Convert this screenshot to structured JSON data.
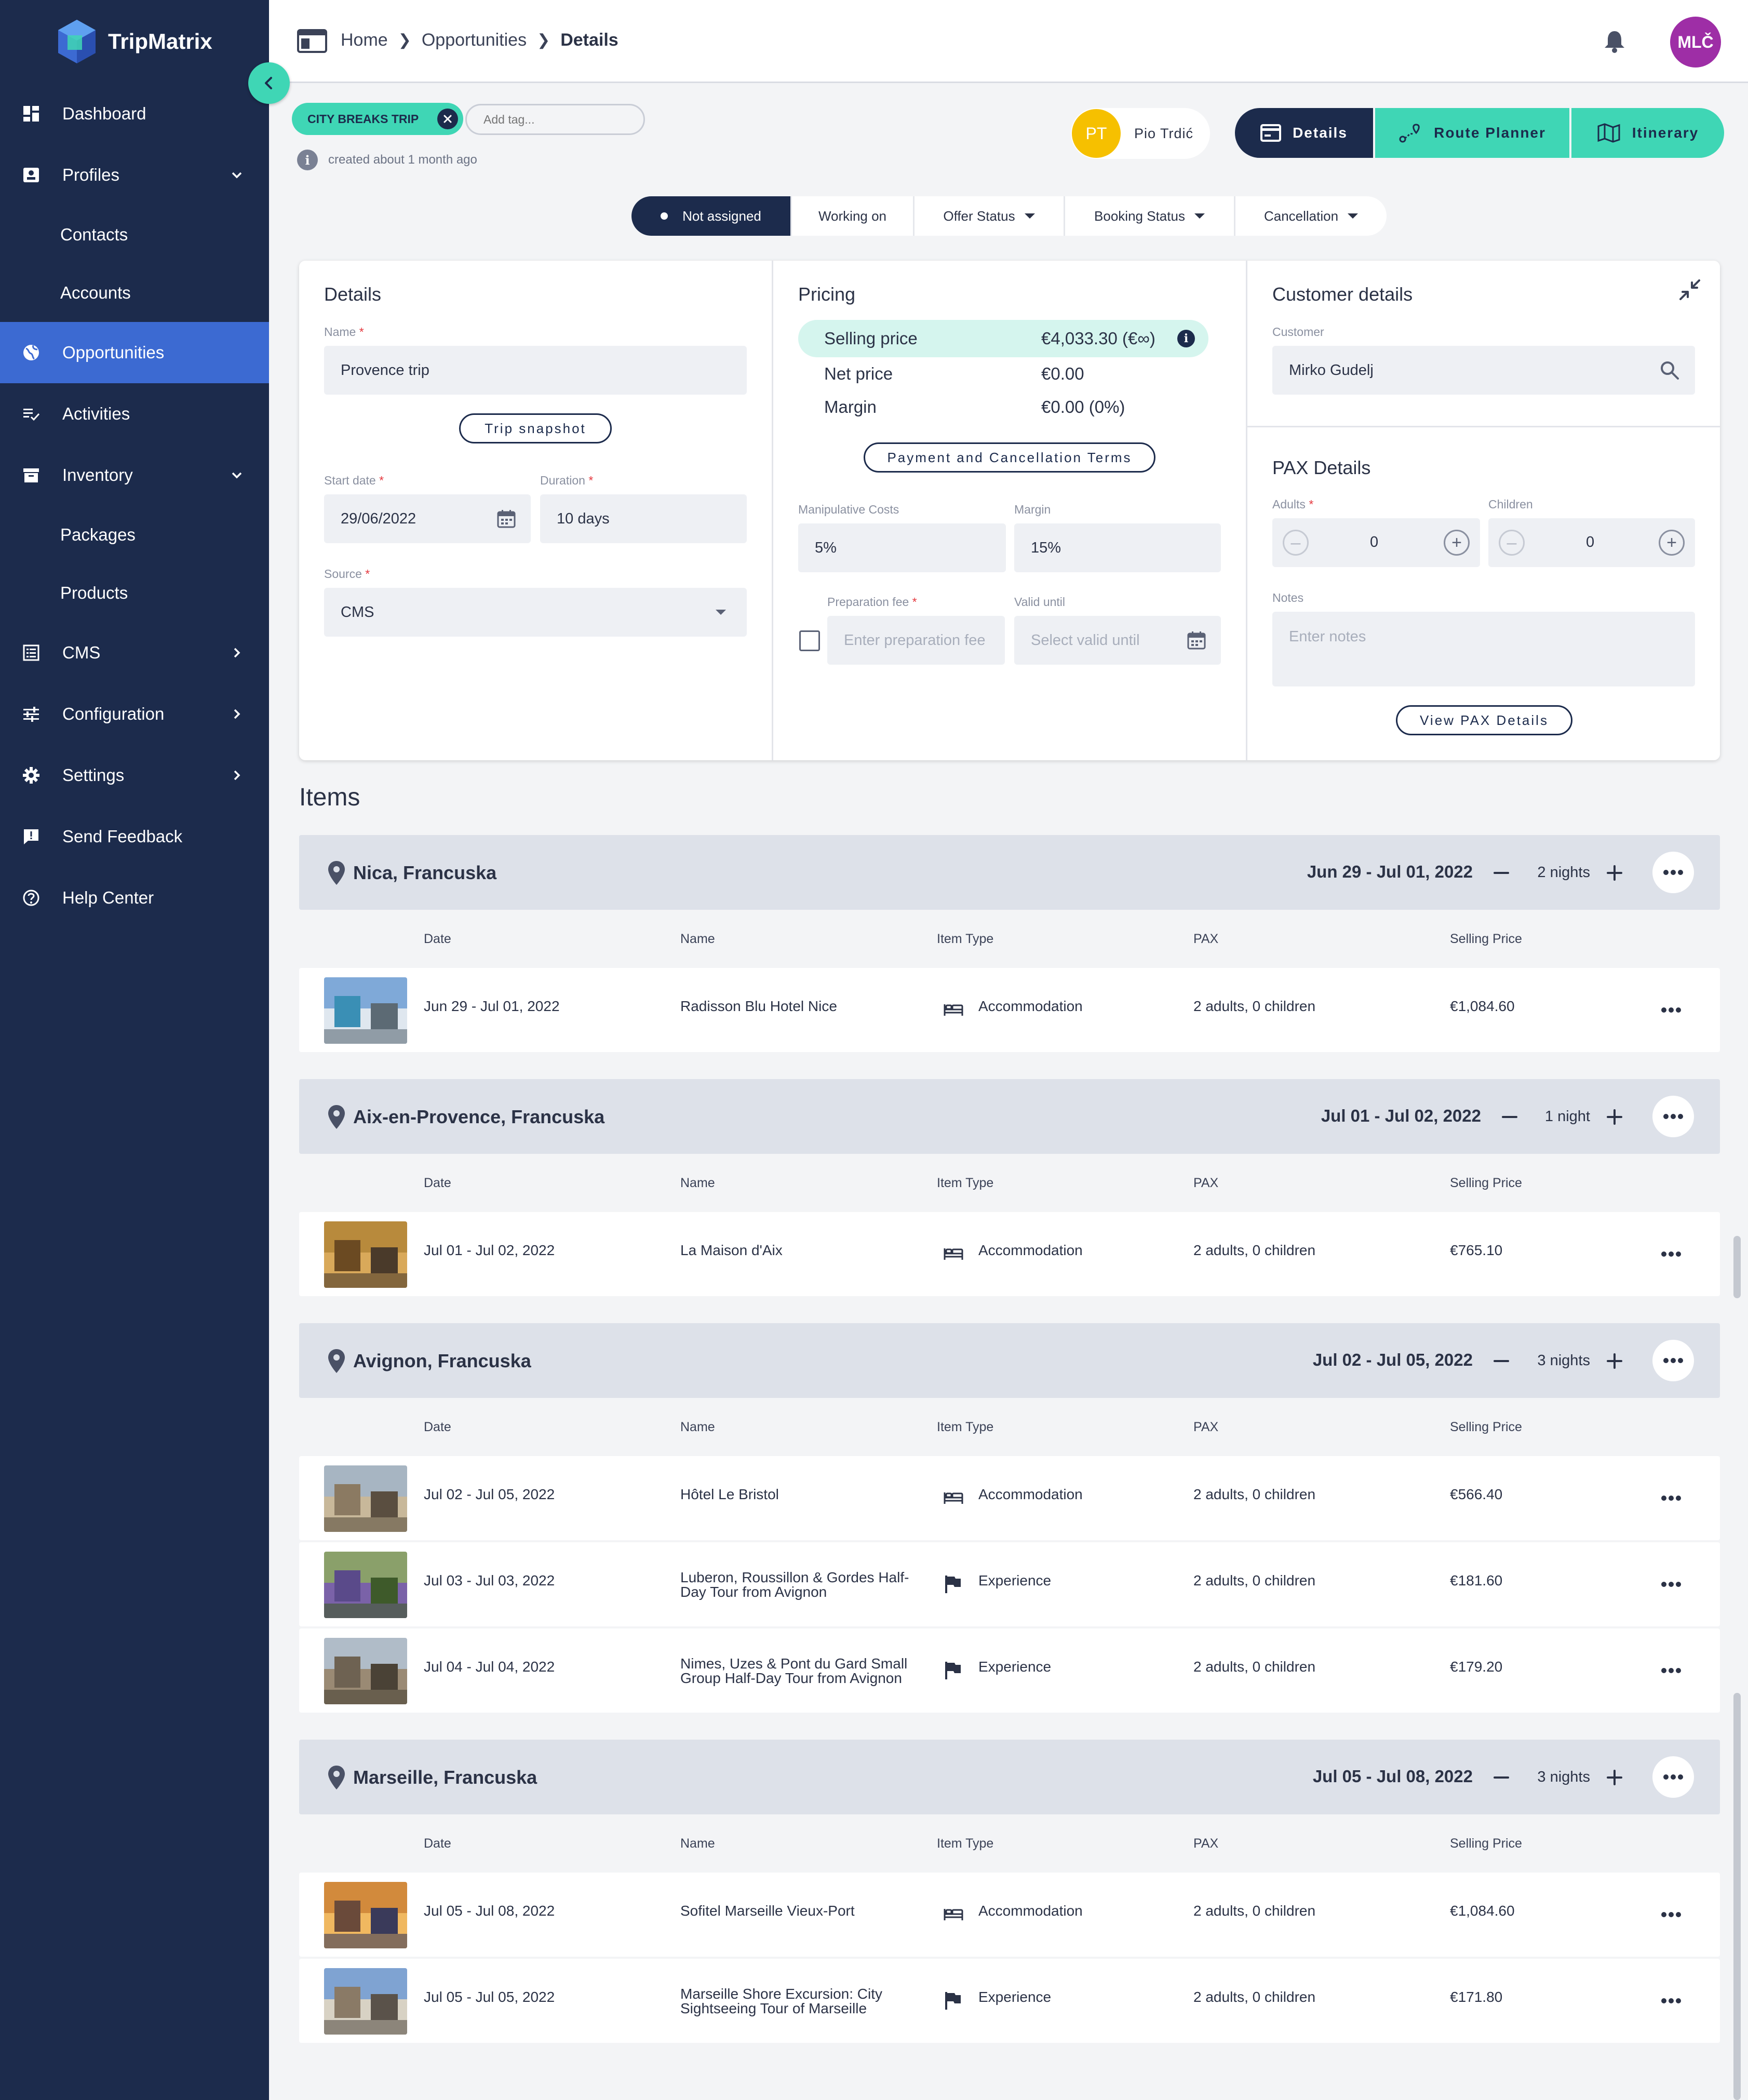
{
  "app": {
    "name": "TripMatrix"
  },
  "sidebar": {
    "items": [
      {
        "label": "Dashboard",
        "icon": "dashboard-icon",
        "active": false,
        "sub": false,
        "chevron": ""
      },
      {
        "label": "Profiles",
        "icon": "profile-card-icon",
        "active": false,
        "sub": false,
        "chevron": "down"
      },
      {
        "label": "Contacts",
        "icon": "",
        "active": false,
        "sub": true,
        "chevron": ""
      },
      {
        "label": "Accounts",
        "icon": "",
        "active": false,
        "sub": true,
        "chevron": ""
      },
      {
        "label": "Opportunities",
        "icon": "globe-icon",
        "active": true,
        "sub": false,
        "chevron": ""
      },
      {
        "label": "Activities",
        "icon": "checklist-icon",
        "active": false,
        "sub": false,
        "chevron": ""
      },
      {
        "label": "Inventory",
        "icon": "inventory-box-icon",
        "active": false,
        "sub": false,
        "chevron": "down"
      },
      {
        "label": "Packages",
        "icon": "",
        "active": false,
        "sub": true,
        "chevron": ""
      },
      {
        "label": "Products",
        "icon": "",
        "active": false,
        "sub": true,
        "chevron": ""
      },
      {
        "label": "CMS",
        "icon": "list-doc-icon",
        "active": false,
        "sub": false,
        "chevron": "right"
      },
      {
        "label": "Configuration",
        "icon": "sliders-icon",
        "active": false,
        "sub": false,
        "chevron": "right"
      },
      {
        "label": "Settings",
        "icon": "gear-icon",
        "active": false,
        "sub": false,
        "chevron": "right"
      },
      {
        "label": "Send Feedback",
        "icon": "feedback-icon",
        "active": false,
        "sub": false,
        "chevron": ""
      },
      {
        "label": "Help Center",
        "icon": "help-icon",
        "active": false,
        "sub": false,
        "chevron": ""
      }
    ]
  },
  "topbar": {
    "breadcrumb": {
      "home": "Home",
      "section": "Opportunities",
      "current": "Details"
    },
    "user_initials": "MLČ"
  },
  "tags": {
    "tag": "CITY BREAKS TRIP",
    "add_placeholder": "Add tag..."
  },
  "created": "created about 1 month ago",
  "assignee": {
    "initials": "PT",
    "name": "Pio Trdić"
  },
  "view_tabs": [
    {
      "label": "Details",
      "icon": "card-icon"
    },
    {
      "label": "Route Planner",
      "icon": "route-icon"
    },
    {
      "label": "Itinerary",
      "icon": "map-icon"
    }
  ],
  "status_bar": [
    {
      "label": "Not assigned",
      "dropdown": false
    },
    {
      "label": "Working on",
      "dropdown": false
    },
    {
      "label": "Offer Status",
      "dropdown": true
    },
    {
      "label": "Booking Status",
      "dropdown": true
    },
    {
      "label": "Cancellation",
      "dropdown": true
    }
  ],
  "details": {
    "title": "Details",
    "name_label": "Name",
    "name_value": "Provence trip",
    "snapshot_button": "Trip snapshot",
    "start_date_label": "Start date",
    "start_date_value": "29/06/2022",
    "duration_label": "Duration",
    "duration_value": "10 days",
    "source_label": "Source",
    "source_value": "CMS"
  },
  "pricing": {
    "title": "Pricing",
    "selling_label": "Selling price",
    "selling_value": "€4,033.30 (€∞)",
    "net_label": "Net price",
    "net_value": "€0.00",
    "margin_label": "Margin",
    "margin_value": "€0.00 (0%)",
    "terms_button": "Payment and Cancellation Terms",
    "manip_label": "Manipulative Costs",
    "manip_value": "5%",
    "margin_field_label": "Margin",
    "margin_field_value": "15%",
    "prep_label": "Preparation fee",
    "prep_placeholder": "Enter preparation fee",
    "valid_label": "Valid until",
    "valid_placeholder": "Select valid until"
  },
  "customer": {
    "title": "Customer details",
    "customer_label": "Customer",
    "customer_value": "Mirko Gudelj"
  },
  "pax": {
    "title": "PAX Details",
    "adults_label": "Adults",
    "adults_value": "0",
    "children_label": "Children",
    "children_value": "0",
    "notes_label": "Notes",
    "notes_placeholder": "Enter notes",
    "view_button": "View PAX Details"
  },
  "items": {
    "title": "Items",
    "columns": {
      "date": "Date",
      "name": "Name",
      "type": "Item Type",
      "pax": "PAX",
      "price": "Selling Price"
    },
    "groups": [
      {
        "city": "Nica, Francuska",
        "dates": "Jun 29 - Jul 01, 2022",
        "nights": "2 nights",
        "rows": [
          {
            "date": "Jun 29 - Jul 01, 2022",
            "name": "Radisson Blu Hotel Nice",
            "type": "Accommodation",
            "type_icon": "bed-icon",
            "pax": "2 adults, 0 children",
            "price": "€1,084.60"
          }
        ]
      },
      {
        "city": "Aix-en-Provence, Francuska",
        "dates": "Jul 01 - Jul 02, 2022",
        "nights": "1 night",
        "rows": [
          {
            "date": "Jul 01 - Jul 02, 2022",
            "name": "La Maison d'Aix",
            "type": "Accommodation",
            "type_icon": "bed-icon",
            "pax": "2 adults, 0 children",
            "price": "€765.10"
          }
        ]
      },
      {
        "city": "Avignon, Francuska",
        "dates": "Jul 02 - Jul 05, 2022",
        "nights": "3 nights",
        "rows": [
          {
            "date": "Jul 02 - Jul 05, 2022",
            "name": "Hôtel Le Bristol",
            "type": "Accommodation",
            "type_icon": "bed-icon",
            "pax": "2 adults, 0 children",
            "price": "€566.40"
          },
          {
            "date": "Jul 03 - Jul 03, 2022",
            "name": "Luberon, Roussillon & Gordes Half-Day Tour from Avignon",
            "type": "Experience",
            "type_icon": "flag-icon",
            "pax": "2 adults, 0 children",
            "price": "€181.60"
          },
          {
            "date": "Jul 04 - Jul 04, 2022",
            "name": "Nimes, Uzes & Pont du Gard Small Group Half-Day Tour from Avignon",
            "type": "Experience",
            "type_icon": "flag-icon",
            "pax": "2 adults, 0 children",
            "price": "€179.20"
          }
        ]
      },
      {
        "city": "Marseille, Francuska",
        "dates": "Jul 05 - Jul 08, 2022",
        "nights": "3 nights",
        "rows": [
          {
            "date": "Jul 05 - Jul 08, 2022",
            "name": "Sofitel Marseille Vieux-Port",
            "type": "Accommodation",
            "type_icon": "bed-icon",
            "pax": "2 adults, 0 children",
            "price": "€1,084.60"
          },
          {
            "date": "Jul 05 - Jul 05, 2022",
            "name": "Marseille Shore Excursion: City Sightseeing Tour of Marseille",
            "type": "Experience",
            "type_icon": "flag-icon",
            "pax": "2 adults, 0 children",
            "price": "€171.80"
          }
        ]
      }
    ]
  },
  "colors": {
    "navy": "#1c2b4c",
    "teal": "#3fd6b5",
    "active_blue": "#3c6ad2",
    "avatar_purple": "#9e2ea6",
    "assignee_yellow": "#f6c000"
  }
}
